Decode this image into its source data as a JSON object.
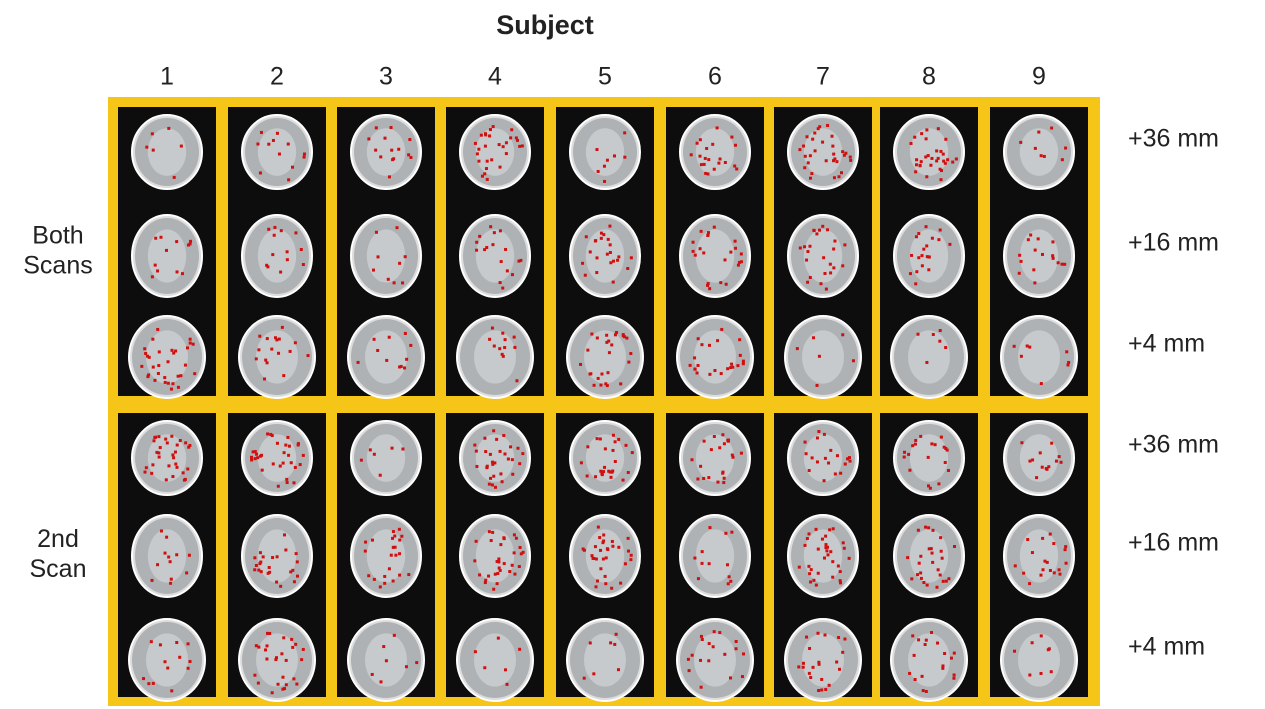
{
  "header": {
    "title": "Subject"
  },
  "subjects": [
    "1",
    "2",
    "3",
    "4",
    "5",
    "6",
    "7",
    "8",
    "9"
  ],
  "groups": [
    {
      "label": "Both Scans",
      "slices": [
        "+36 mm",
        "+16 mm",
        "+4 mm"
      ]
    },
    {
      "label": "2nd Scan",
      "slices": [
        "+36 mm",
        "+16 mm",
        "+4 mm"
      ]
    }
  ]
}
